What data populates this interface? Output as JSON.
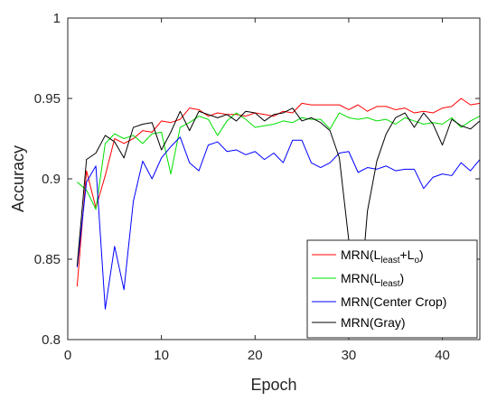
{
  "chart_data": {
    "type": "line",
    "xlabel": "Epoch",
    "ylabel": "Accuracy",
    "xlim": [
      0,
      44
    ],
    "ylim": [
      0.8,
      1.0
    ],
    "xticks": [
      "0",
      "10",
      "20",
      "30",
      "40"
    ],
    "yticks": [
      "0.8",
      "0.85",
      "0.9",
      "0.95",
      "1"
    ],
    "grid": false,
    "legend_position": "bottom-right",
    "x": [
      1,
      2,
      3,
      4,
      5,
      6,
      7,
      8,
      9,
      10,
      11,
      12,
      13,
      14,
      15,
      16,
      17,
      18,
      19,
      20,
      21,
      22,
      23,
      24,
      25,
      26,
      27,
      28,
      29,
      30,
      31,
      32,
      33,
      34,
      35,
      36,
      37,
      38,
      39,
      40,
      41,
      42,
      43,
      44
    ],
    "series": [
      {
        "key": "red",
        "legend": {
          "prefix": "MRN(L",
          "sub1": "least",
          "mid": "+L",
          "sub2": "o",
          "suffix": ")"
        },
        "color": "#ff0000",
        "values": [
          0.833,
          0.905,
          0.882,
          0.902,
          0.925,
          0.922,
          0.925,
          0.93,
          0.929,
          0.936,
          0.935,
          0.937,
          0.944,
          0.943,
          0.939,
          0.941,
          0.94,
          0.94,
          0.939,
          0.941,
          0.94,
          0.939,
          0.942,
          0.941,
          0.947,
          0.946,
          0.946,
          0.946,
          0.946,
          0.943,
          0.946,
          0.942,
          0.945,
          0.945,
          0.943,
          0.944,
          0.941,
          0.942,
          0.941,
          0.944,
          0.945,
          0.95,
          0.946,
          0.947
        ]
      },
      {
        "key": "green",
        "legend": {
          "prefix": "MRN(L",
          "sub1": "least",
          "mid": "",
          "sub2": "",
          "suffix": ")"
        },
        "color": "#00e000",
        "values": [
          0.898,
          0.893,
          0.881,
          0.922,
          0.928,
          0.925,
          0.927,
          0.922,
          0.928,
          0.929,
          0.903,
          0.932,
          0.935,
          0.939,
          0.937,
          0.927,
          0.936,
          0.941,
          0.937,
          0.932,
          0.933,
          0.934,
          0.936,
          0.935,
          0.938,
          0.937,
          0.937,
          0.931,
          0.941,
          0.938,
          0.937,
          0.938,
          0.936,
          0.937,
          0.934,
          0.938,
          0.936,
          0.934,
          0.935,
          0.934,
          0.938,
          0.932,
          0.936,
          0.939
        ]
      },
      {
        "key": "blue",
        "legend": {
          "prefix": "MRN(Center Crop)",
          "sub1": "",
          "mid": "",
          "sub2": "",
          "suffix": ""
        },
        "color": "#0000ff",
        "values": [
          0.845,
          0.898,
          0.908,
          0.819,
          0.858,
          0.831,
          0.886,
          0.911,
          0.9,
          0.913,
          0.92,
          0.926,
          0.91,
          0.905,
          0.921,
          0.923,
          0.917,
          0.918,
          0.915,
          0.917,
          0.912,
          0.916,
          0.91,
          0.924,
          0.924,
          0.91,
          0.907,
          0.91,
          0.916,
          0.917,
          0.904,
          0.907,
          0.906,
          0.908,
          0.905,
          0.906,
          0.906,
          0.894,
          0.901,
          0.903,
          0.902,
          0.91,
          0.905,
          0.912
        ]
      },
      {
        "key": "black",
        "legend": {
          "prefix": "MRN(Gray)",
          "sub1": "",
          "mid": "",
          "sub2": "",
          "suffix": ""
        },
        "color": "#000000",
        "values": [
          0.846,
          0.912,
          0.916,
          0.927,
          0.923,
          0.913,
          0.932,
          0.934,
          0.935,
          0.918,
          0.929,
          0.942,
          0.93,
          0.942,
          0.94,
          0.938,
          0.94,
          0.936,
          0.942,
          0.941,
          0.936,
          0.94,
          0.941,
          0.944,
          0.936,
          0.938,
          0.935,
          0.93,
          0.913,
          0.862,
          0.81,
          0.88,
          0.911,
          0.928,
          0.938,
          0.941,
          0.932,
          0.941,
          0.934,
          0.921,
          0.937,
          0.933,
          0.931,
          0.936
        ]
      }
    ]
  }
}
